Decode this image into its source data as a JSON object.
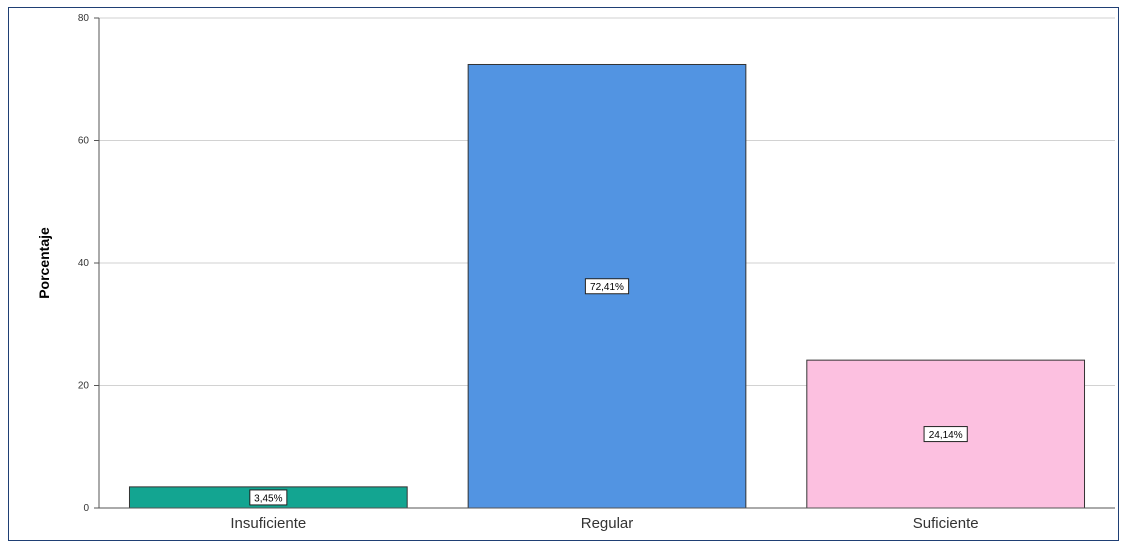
{
  "chart_data": {
    "type": "bar",
    "title": "",
    "xlabel": "",
    "ylabel": "Porcentaje",
    "categories": [
      "Insuficiente",
      "Regular",
      "Suficiente"
    ],
    "values": [
      3.45,
      72.41,
      24.14
    ],
    "data_labels": [
      "3,45%",
      "72,41%",
      "24,14%"
    ],
    "colors": [
      "#13a591",
      "#5294e2",
      "#fcc0e0"
    ],
    "yticks": [
      0,
      20,
      40,
      60,
      80
    ],
    "ylim": [
      0,
      80
    ],
    "grid": true,
    "legend": "none"
  }
}
